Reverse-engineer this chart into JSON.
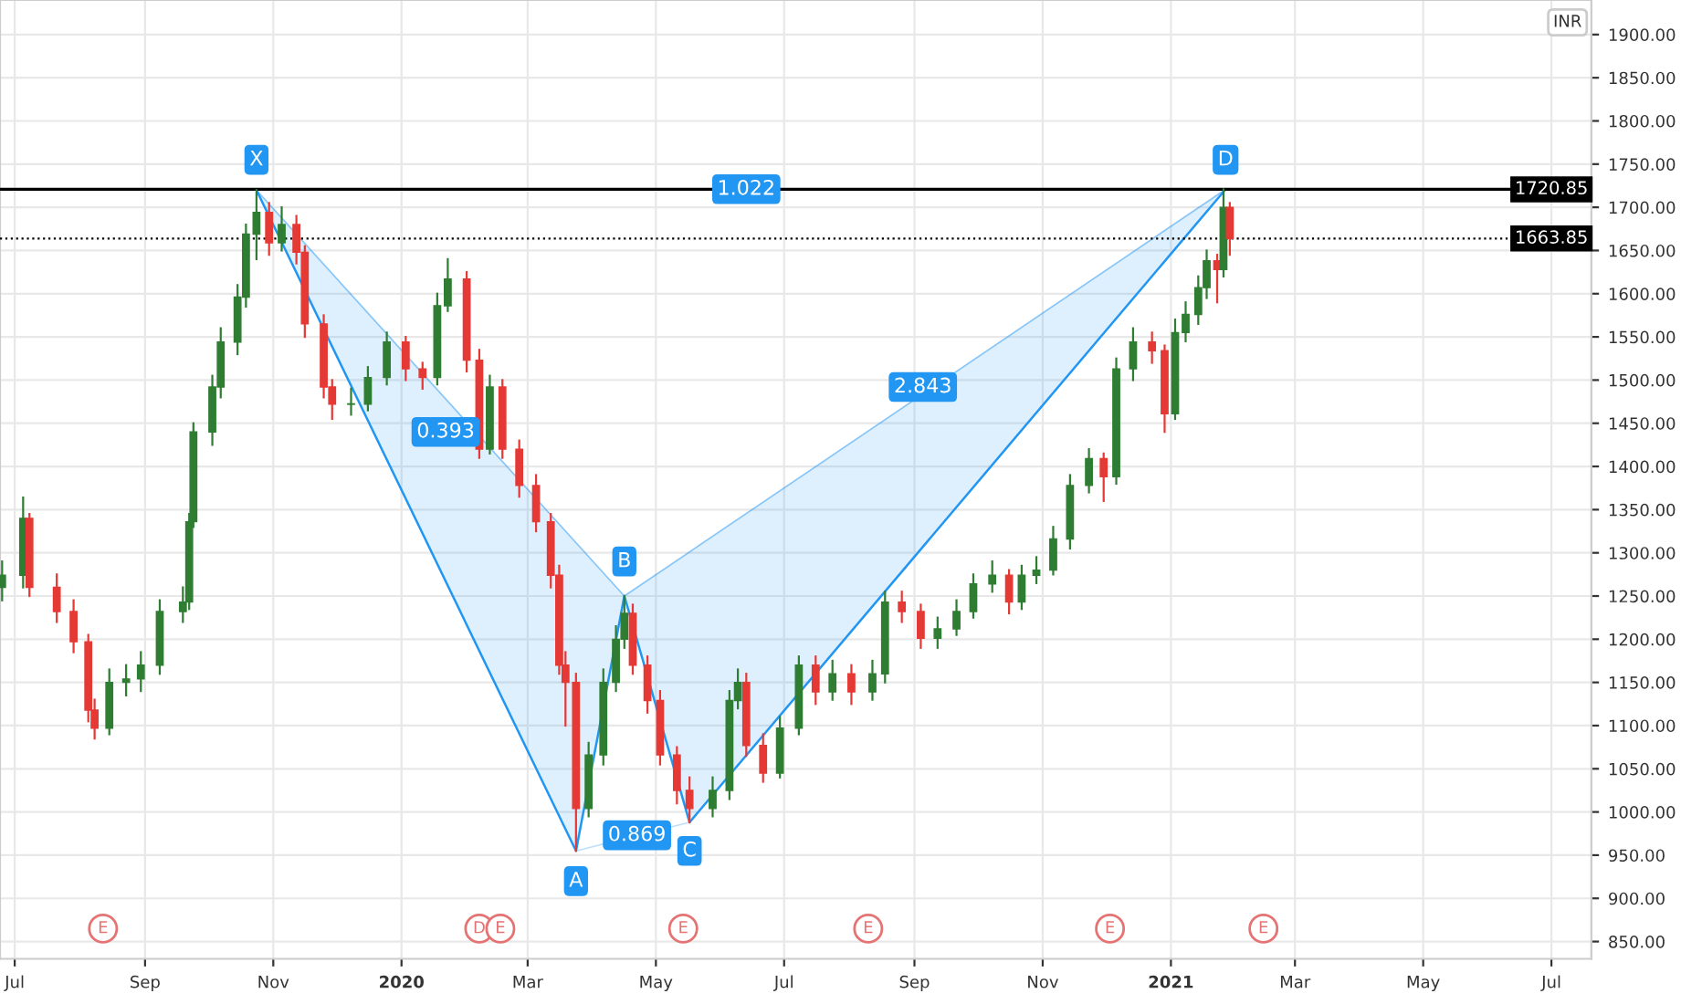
{
  "chart_data": {
    "type": "candlestick",
    "x": [
      "2019-06-25",
      "2019-07-05",
      "2019-07-08",
      "2019-07-21",
      "2019-07-29",
      "2019-08-05",
      "2019-08-08",
      "2019-08-15",
      "2019-08-23",
      "2019-08-30",
      "2019-09-08",
      "2019-09-19",
      "2019-09-22",
      "2019-09-24",
      "2019-10-03",
      "2019-10-07",
      "2019-10-15",
      "2019-10-19",
      "2019-10-24",
      "2019-10-30",
      "2019-11-05",
      "2019-11-12",
      "2019-11-16",
      "2019-11-25",
      "2019-11-29",
      "2019-12-08",
      "2019-12-16",
      "2019-12-25",
      "2020-01-03",
      "2020-01-11",
      "2020-01-18",
      "2020-01-23",
      "2020-02-01",
      "2020-02-07",
      "2020-02-12",
      "2020-02-18",
      "2020-02-26",
      "2020-03-05",
      "2020-03-12",
      "2020-03-16",
      "2020-03-19",
      "2020-03-24",
      "2020-03-30",
      "2020-04-06",
      "2020-04-12",
      "2020-04-16",
      "2020-04-20",
      "2020-04-27",
      "2020-05-03",
      "2020-05-11",
      "2020-05-17",
      "2020-05-28",
      "2020-06-05",
      "2020-06-09",
      "2020-06-13",
      "2020-06-21",
      "2020-06-29",
      "2020-07-08",
      "2020-07-16",
      "2020-07-24",
      "2020-08-02",
      "2020-08-12",
      "2020-08-18",
      "2020-08-26",
      "2020-09-04",
      "2020-09-12",
      "2020-09-21",
      "2020-09-29",
      "2020-10-08",
      "2020-10-16",
      "2020-10-22",
      "2020-10-29",
      "2020-11-06",
      "2020-11-14",
      "2020-11-23",
      "2020-11-30",
      "2020-12-06",
      "2020-12-14",
      "2020-12-23",
      "2020-12-29",
      "2021-01-03",
      "2021-01-08",
      "2021-01-14",
      "2021-01-18",
      "2021-01-23",
      "2021-01-26",
      "2021-01-29"
    ],
    "ohlc": [
      [
        1260,
        1290,
        1245,
        1274
      ],
      [
        1274,
        1364,
        1260,
        1340
      ],
      [
        1340,
        1345,
        1250,
        1260
      ],
      [
        1260,
        1275,
        1220,
        1232
      ],
      [
        1232,
        1245,
        1185,
        1197
      ],
      [
        1197,
        1205,
        1105,
        1118
      ],
      [
        1118,
        1130,
        1085,
        1097
      ],
      [
        1097,
        1165,
        1090,
        1150
      ],
      [
        1150,
        1170,
        1135,
        1154
      ],
      [
        1154,
        1185,
        1140,
        1170
      ],
      [
        1170,
        1245,
        1160,
        1232
      ],
      [
        1232,
        1260,
        1220,
        1243
      ],
      [
        1243,
        1345,
        1235,
        1336
      ],
      [
        1336,
        1450,
        1330,
        1440
      ],
      [
        1440,
        1505,
        1425,
        1492
      ],
      [
        1492,
        1560,
        1480,
        1544
      ],
      [
        1544,
        1610,
        1530,
        1596
      ],
      [
        1596,
        1680,
        1585,
        1669
      ],
      [
        1669,
        1720,
        1640,
        1694
      ],
      [
        1694,
        1705,
        1645,
        1659
      ],
      [
        1659,
        1700,
        1650,
        1680
      ],
      [
        1680,
        1690,
        1635,
        1648
      ],
      [
        1648,
        1655,
        1550,
        1565
      ],
      [
        1565,
        1575,
        1480,
        1492
      ],
      [
        1492,
        1500,
        1455,
        1472
      ],
      [
        1472,
        1490,
        1460,
        1472
      ],
      [
        1472,
        1515,
        1465,
        1503
      ],
      [
        1503,
        1555,
        1495,
        1544
      ],
      [
        1544,
        1550,
        1500,
        1513
      ],
      [
        1513,
        1520,
        1490,
        1503
      ],
      [
        1503,
        1600,
        1495,
        1586
      ],
      [
        1586,
        1640,
        1580,
        1617
      ],
      [
        1617,
        1625,
        1510,
        1523
      ],
      [
        1523,
        1535,
        1410,
        1420
      ],
      [
        1420,
        1505,
        1415,
        1492
      ],
      [
        1492,
        1500,
        1410,
        1420
      ],
      [
        1420,
        1430,
        1365,
        1378
      ],
      [
        1378,
        1390,
        1325,
        1336
      ],
      [
        1336,
        1345,
        1260,
        1274
      ],
      [
        1274,
        1285,
        1160,
        1170
      ],
      [
        1170,
        1185,
        1100,
        1150
      ],
      [
        1150,
        1160,
        955,
        1004
      ],
      [
        1004,
        1080,
        995,
        1066
      ],
      [
        1066,
        1165,
        1055,
        1150
      ],
      [
        1150,
        1215,
        1140,
        1200
      ],
      [
        1200,
        1250,
        1190,
        1230
      ],
      [
        1230,
        1240,
        1160,
        1170
      ],
      [
        1170,
        1180,
        1115,
        1129
      ],
      [
        1129,
        1140,
        1055,
        1066
      ],
      [
        1066,
        1075,
        1010,
        1025
      ],
      [
        1025,
        1040,
        988,
        1004
      ],
      [
        1004,
        1040,
        995,
        1025
      ],
      [
        1025,
        1140,
        1015,
        1129
      ],
      [
        1129,
        1165,
        1120,
        1150
      ],
      [
        1150,
        1160,
        1065,
        1077
      ],
      [
        1077,
        1090,
        1035,
        1045
      ],
      [
        1045,
        1110,
        1040,
        1097
      ],
      [
        1097,
        1180,
        1090,
        1170
      ],
      [
        1170,
        1180,
        1125,
        1139
      ],
      [
        1139,
        1175,
        1130,
        1160
      ],
      [
        1160,
        1170,
        1125,
        1139
      ],
      [
        1139,
        1175,
        1130,
        1160
      ],
      [
        1160,
        1255,
        1150,
        1243
      ],
      [
        1243,
        1255,
        1220,
        1232
      ],
      [
        1232,
        1240,
        1190,
        1201
      ],
      [
        1201,
        1225,
        1190,
        1212
      ],
      [
        1212,
        1245,
        1205,
        1232
      ],
      [
        1232,
        1275,
        1225,
        1264
      ],
      [
        1264,
        1290,
        1255,
        1274
      ],
      [
        1274,
        1280,
        1230,
        1243
      ],
      [
        1243,
        1285,
        1235,
        1274
      ],
      [
        1274,
        1295,
        1265,
        1280
      ],
      [
        1280,
        1330,
        1275,
        1316
      ],
      [
        1316,
        1390,
        1305,
        1378
      ],
      [
        1378,
        1420,
        1370,
        1409
      ],
      [
        1409,
        1415,
        1360,
        1388
      ],
      [
        1388,
        1525,
        1380,
        1513
      ],
      [
        1513,
        1560,
        1500,
        1544
      ],
      [
        1544,
        1555,
        1520,
        1534
      ],
      [
        1534,
        1540,
        1440,
        1461
      ],
      [
        1461,
        1570,
        1455,
        1555
      ],
      [
        1555,
        1590,
        1545,
        1576
      ],
      [
        1576,
        1620,
        1565,
        1607
      ],
      [
        1607,
        1650,
        1595,
        1638
      ],
      [
        1638,
        1645,
        1590,
        1628
      ],
      [
        1628,
        1720.85,
        1620,
        1700
      ],
      [
        1700,
        1705,
        1645,
        1663.85
      ]
    ],
    "series": [
      {
        "type": "line",
        "color": "#2196f3",
        "x": [
          "2019-10-24",
          "2020-03-24",
          "2020-04-16",
          "2020-05-17",
          "2021-01-27"
        ],
        "values": [
          1720,
          955,
          1250,
          988,
          1720.85
        ]
      }
    ],
    "xlim": [
      "2019-06-24",
      "2021-07-20"
    ],
    "xticks": [
      {
        "value": "2019-07-01",
        "label": "Jul"
      },
      {
        "value": "2019-09-01",
        "label": "Sep"
      },
      {
        "value": "2019-11-01",
        "label": "Nov"
      },
      {
        "value": "2020-01-01",
        "label": "2020"
      },
      {
        "value": "2020-03-01",
        "label": "Mar"
      },
      {
        "value": "2020-05-01",
        "label": "May"
      },
      {
        "value": "2020-07-01",
        "label": "Jul"
      },
      {
        "value": "2020-09-01",
        "label": "Sep"
      },
      {
        "value": "2020-11-01",
        "label": "Nov"
      },
      {
        "value": "2021-01-01",
        "label": "2021"
      },
      {
        "value": "2021-03-01",
        "label": "Mar"
      },
      {
        "value": "2021-05-01",
        "label": "May"
      },
      {
        "value": "2021-07-01",
        "label": "Jul"
      }
    ],
    "ylim": [
      830,
      1940
    ],
    "yticks": [
      {
        "value": 850,
        "label": "850.00"
      },
      {
        "value": 900,
        "label": "900.00"
      },
      {
        "value": 950,
        "label": "950.00"
      },
      {
        "value": 1000,
        "label": "1000.00"
      },
      {
        "value": 1050,
        "label": "1050.00"
      },
      {
        "value": 1100,
        "label": "1100.00"
      },
      {
        "value": 1150,
        "label": "1150.00"
      },
      {
        "value": 1200,
        "label": "1200.00"
      },
      {
        "value": 1250,
        "label": "1250.00"
      },
      {
        "value": 1300,
        "label": "1300.00"
      },
      {
        "value": 1350,
        "label": "1350.00"
      },
      {
        "value": 1400,
        "label": "1400.00"
      },
      {
        "value": 1450,
        "label": "1450.00"
      },
      {
        "value": 1500,
        "label": "1500.00"
      },
      {
        "value": 1550,
        "label": "1550.00"
      },
      {
        "value": 1600,
        "label": "1600.00"
      },
      {
        "value": 1650,
        "label": "1650.00"
      },
      {
        "value": 1700,
        "label": "1700.00"
      },
      {
        "value": 1750,
        "label": "1750.00"
      },
      {
        "value": 1800,
        "label": "1800.00"
      },
      {
        "value": 1850,
        "label": "1850.00"
      },
      {
        "value": 1900,
        "label": "1900.00"
      }
    ],
    "ref_lines": [
      {
        "axis": "y",
        "value": 1720.85,
        "label": "1720.85",
        "color": "#000000",
        "line_style": "solid"
      },
      {
        "axis": "y",
        "value": 1663.85,
        "label": "1663.85",
        "color": "#000000",
        "line_style": "dotted"
      }
    ],
    "annotations": [
      "INR",
      {
        "text": "X",
        "x": "2019-10-24",
        "y": 1755
      },
      {
        "text": "A",
        "x": "2020-03-24",
        "y": 920
      },
      {
        "text": "B",
        "x": "2020-04-16",
        "y": 1290
      },
      {
        "text": "C",
        "x": "2020-05-17",
        "y": 955
      },
      {
        "text": "D",
        "x": "2021-01-27",
        "y": 1755
      },
      {
        "text": "0.393",
        "x": "2020-01-22",
        "y": 1440
      },
      {
        "text": "0.869",
        "x": "2020-04-22",
        "y": 973
      },
      {
        "text": "2.843",
        "x": "2020-09-05",
        "y": 1492
      },
      {
        "text": "1.022",
        "x": "2020-06-13",
        "y": 1721
      },
      {
        "text": "E",
        "x": "2019-08-12",
        "y": 865
      },
      {
        "text": "D",
        "x": "2020-02-07",
        "y": 865
      },
      {
        "text": "E",
        "x": "2020-02-17",
        "y": 865
      },
      {
        "text": "E",
        "x": "2020-05-14",
        "y": 865
      },
      {
        "text": "E",
        "x": "2020-08-10",
        "y": 865
      },
      {
        "text": "E",
        "x": "2020-12-03",
        "y": 865
      },
      {
        "text": "E",
        "x": "2021-02-14",
        "y": 865
      }
    ],
    "grid": true,
    "legend": false
  }
}
